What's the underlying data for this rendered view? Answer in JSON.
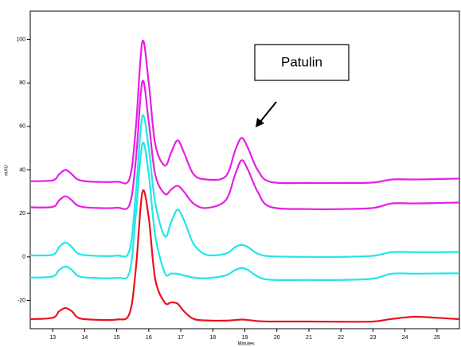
{
  "chart_data": {
    "type": "line",
    "xlabel": "Minutes",
    "ylabel": "mAU",
    "annotation": "Patulin",
    "x": [
      12.3,
      13.0,
      13.2,
      13.4,
      13.6,
      13.8,
      14.2,
      15.0,
      15.4,
      15.6,
      15.8,
      16.0,
      16.2,
      16.5,
      16.7,
      16.9,
      17.1,
      17.4,
      17.8,
      18.4,
      18.7,
      18.9,
      19.1,
      19.4,
      19.8,
      21,
      22,
      23,
      23.6,
      24.3,
      25,
      25.7
    ],
    "series": [
      {
        "color": "#e61ee6",
        "values": [
          34.8,
          35.2,
          38,
          40,
          38,
          35.5,
          34.6,
          34.6,
          36,
          60,
          99,
          80,
          52,
          42,
          48,
          53.6,
          48,
          38,
          35.6,
          37,
          49,
          54.7,
          50,
          40,
          34.5,
          34,
          34,
          34.2,
          35.6,
          35.6,
          35.8,
          36
        ]
      },
      {
        "color": "#e61ee6",
        "values": [
          22.8,
          23,
          26,
          27.9,
          26,
          23.5,
          22.6,
          22.6,
          24,
          45,
          80.7,
          62,
          38,
          29,
          31,
          32.7,
          30,
          24.5,
          22.5,
          26,
          38,
          44.4,
          40,
          30,
          23,
          22,
          22,
          22.5,
          24.6,
          24.6,
          24.8,
          25
        ]
      },
      {
        "color": "#22e6e6",
        "values": [
          0.7,
          1,
          4.5,
          6.6,
          4.5,
          1.5,
          0.6,
          0.6,
          3,
          30,
          64.6,
          50,
          25,
          9.5,
          16,
          21.7,
          17,
          6,
          1,
          1.5,
          4.5,
          5.5,
          4.5,
          1.5,
          0.3,
          0,
          0,
          0.5,
          2.2,
          2.2,
          2.2,
          2.3
        ]
      },
      {
        "color": "#22e6e6",
        "values": [
          -9.5,
          -9,
          -6,
          -4.4,
          -6,
          -8.8,
          -9.6,
          -9.6,
          -7,
          20,
          52,
          38,
          10,
          -7.3,
          -7.6,
          -7.8,
          -8.5,
          -9.5,
          -9.8,
          -8.5,
          -6,
          -5.1,
          -6,
          -9,
          -10.5,
          -10.6,
          -10.6,
          -10,
          -7.7,
          -7.7,
          -7.6,
          -7.5
        ]
      },
      {
        "color": "#e8121e",
        "values": [
          -28.6,
          -28,
          -25,
          -23.5,
          -25,
          -28,
          -28.8,
          -28.8,
          -26,
          -5,
          29.7,
          18,
          -10,
          -21,
          -20.9,
          -21.5,
          -25,
          -28.5,
          -29.2,
          -29.3,
          -29,
          -28.8,
          -29,
          -29.5,
          -29.7,
          -29.7,
          -29.8,
          -29.7,
          -28.5,
          -27.5,
          -28,
          -28.6
        ]
      }
    ],
    "xlim": [
      12.3,
      25.7
    ],
    "ylim": [
      -33,
      113
    ],
    "xticks": [
      13,
      14,
      15,
      16,
      17,
      18,
      19,
      20,
      21,
      22,
      23,
      24,
      25
    ],
    "yticks": [
      -20,
      0,
      20,
      40,
      60,
      80,
      100
    ]
  }
}
